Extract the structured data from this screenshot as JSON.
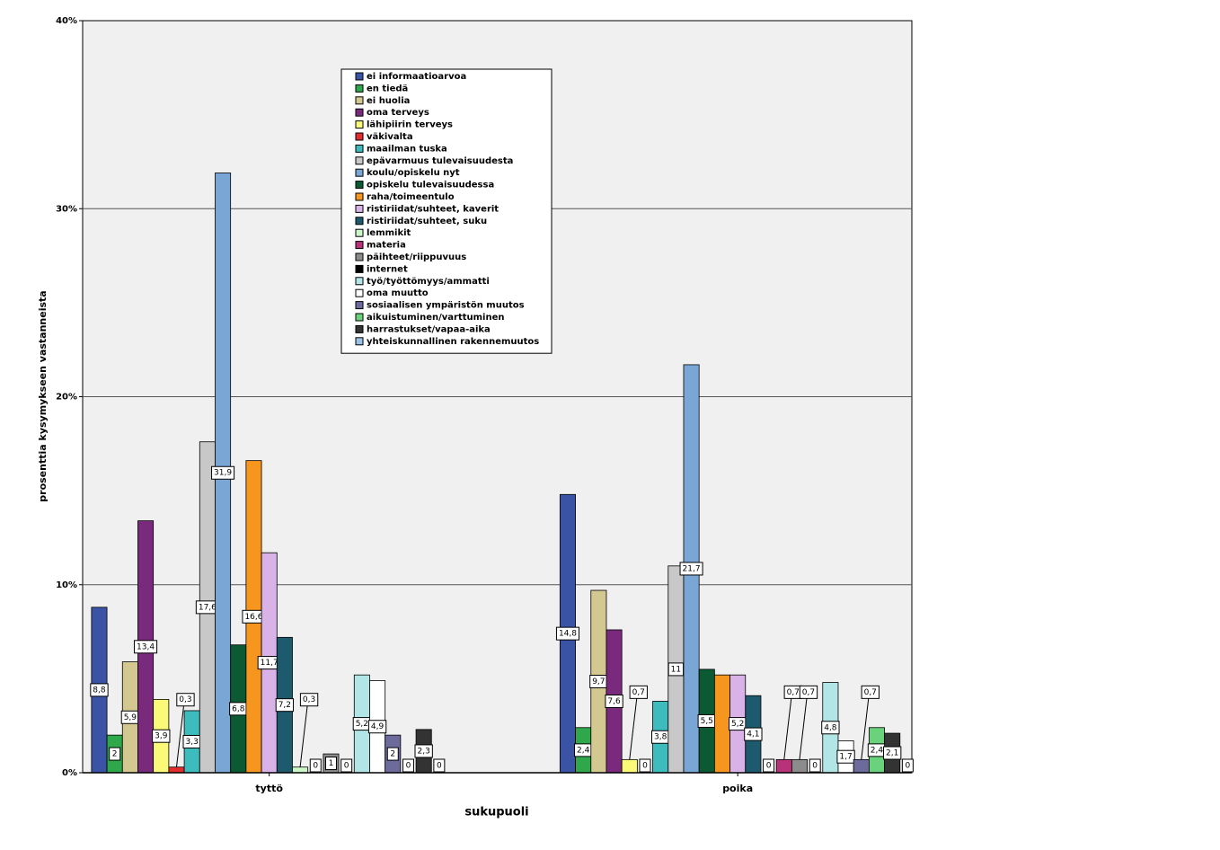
{
  "chart_data": {
    "type": "bar",
    "categories": [
      "tyttö",
      "poika"
    ],
    "x_label": "sukupuoli",
    "y_label": "prosenttia kysymykseen vastanneista",
    "ylim": [
      0,
      40
    ],
    "yticks": [
      {
        "value": 0,
        "label": "0%"
      },
      {
        "value": 10,
        "label": "10%"
      },
      {
        "value": 20,
        "label": "20%"
      },
      {
        "value": 30,
        "label": "30%"
      },
      {
        "value": 40,
        "label": "40%"
      }
    ],
    "grid": true,
    "legend": "top-center",
    "series": [
      {
        "name": "ei informaatioarvoa",
        "color": "#3a53a4",
        "values": [
          8.8,
          14.8
        ],
        "value_labels": [
          "8,8",
          "14,8"
        ]
      },
      {
        "name": "en tiedä",
        "color": "#2ea84a",
        "values": [
          2,
          2.4
        ],
        "value_labels": [
          "2",
          "2,4"
        ]
      },
      {
        "name": "ei huolia",
        "color": "#d2c890",
        "values": [
          5.9,
          9.7
        ],
        "value_labels": [
          "5,9",
          "9,7"
        ]
      },
      {
        "name": "oma terveys",
        "color": "#7a2a7c",
        "values": [
          13.4,
          7.6
        ],
        "value_labels": [
          "13,4",
          "7,6"
        ]
      },
      {
        "name": "lähipiirin terveys",
        "color": "#fbf978",
        "values": [
          3.9,
          0.7
        ],
        "value_labels": [
          "3,9",
          "0,7"
        ]
      },
      {
        "name": "väkivalta",
        "color": "#e32d2d",
        "values": [
          0.3,
          0
        ],
        "value_labels": [
          "0,3",
          "0"
        ]
      },
      {
        "name": "maailman tuska",
        "color": "#3dbbbd",
        "values": [
          3.3,
          3.8
        ],
        "value_labels": [
          "3,3",
          "3,8"
        ]
      },
      {
        "name": "epävarmuus tulevaisuudesta",
        "color": "#c8c8c8",
        "values": [
          17.6,
          11
        ],
        "value_labels": [
          "17,6",
          "11"
        ]
      },
      {
        "name": "koulu/opiskelu nyt",
        "color": "#7aa6d6",
        "values": [
          31.9,
          21.7
        ],
        "value_labels": [
          "31,9",
          "21,7"
        ]
      },
      {
        "name": "opiskelu tulevaisuudessa",
        "color": "#0b5a33",
        "values": [
          6.8,
          5.5
        ],
        "value_labels": [
          "6,8",
          "5,5"
        ]
      },
      {
        "name": "raha/toimeentulo",
        "color": "#f7961e",
        "values": [
          16.6,
          5.2
        ],
        "value_labels": [
          "16,6",
          null
        ]
      },
      {
        "name": "ristiriidat/suhteet, kaverit",
        "color": "#d9b3e8",
        "values": [
          11.7,
          5.2
        ],
        "value_labels": [
          "11,7",
          "5,2"
        ]
      },
      {
        "name": "ristiriidat/suhteet, suku",
        "color": "#1d5a6e",
        "values": [
          7.2,
          4.1
        ],
        "value_labels": [
          "7,2",
          "4,1"
        ]
      },
      {
        "name": "lemmikit",
        "color": "#ccf6c8",
        "values": [
          0.3,
          0
        ],
        "value_labels": [
          "0,3",
          "0"
        ]
      },
      {
        "name": "materia",
        "color": "#b8327a",
        "values": [
          0,
          0.7
        ],
        "value_labels": [
          "0",
          "0,7"
        ]
      },
      {
        "name": "päihteet/riippuvuus",
        "color": "#8c8c8c",
        "values": [
          1,
          0.7
        ],
        "value_labels": [
          "1",
          "0,7"
        ]
      },
      {
        "name": "internet",
        "color": "#000000",
        "values": [
          0,
          0
        ],
        "value_labels": [
          "0",
          "0"
        ]
      },
      {
        "name": "työ/työttömyys/ammatti",
        "color": "#b2e5e5",
        "values": [
          5.2,
          4.8
        ],
        "value_labels": [
          "5,2",
          "4,8"
        ]
      },
      {
        "name": "oma muutto",
        "color": "#ffffff",
        "values": [
          4.9,
          1.7
        ],
        "value_labels": [
          "4,9",
          "1,7"
        ]
      },
      {
        "name": "sosiaalisen ympäristön muutos",
        "color": "#6c6b9c",
        "values": [
          2,
          0.7
        ],
        "value_labels": [
          "2",
          "0,7"
        ]
      },
      {
        "name": "aikuistuminen/varttuminen",
        "color": "#6bd27c",
        "values": [
          0,
          2.4
        ],
        "value_labels": [
          "0",
          "2,4"
        ]
      },
      {
        "name": "harrastukset/vapaa-aika",
        "color": "#333333",
        "values": [
          2.3,
          2.1
        ],
        "value_labels": [
          "2,3",
          "2,1"
        ]
      },
      {
        "name": "yhteiskunnallinen rakennemuutos",
        "color": "#9ac2e6",
        "values": [
          0,
          0
        ],
        "value_labels": [
          "0",
          "0"
        ]
      }
    ]
  }
}
